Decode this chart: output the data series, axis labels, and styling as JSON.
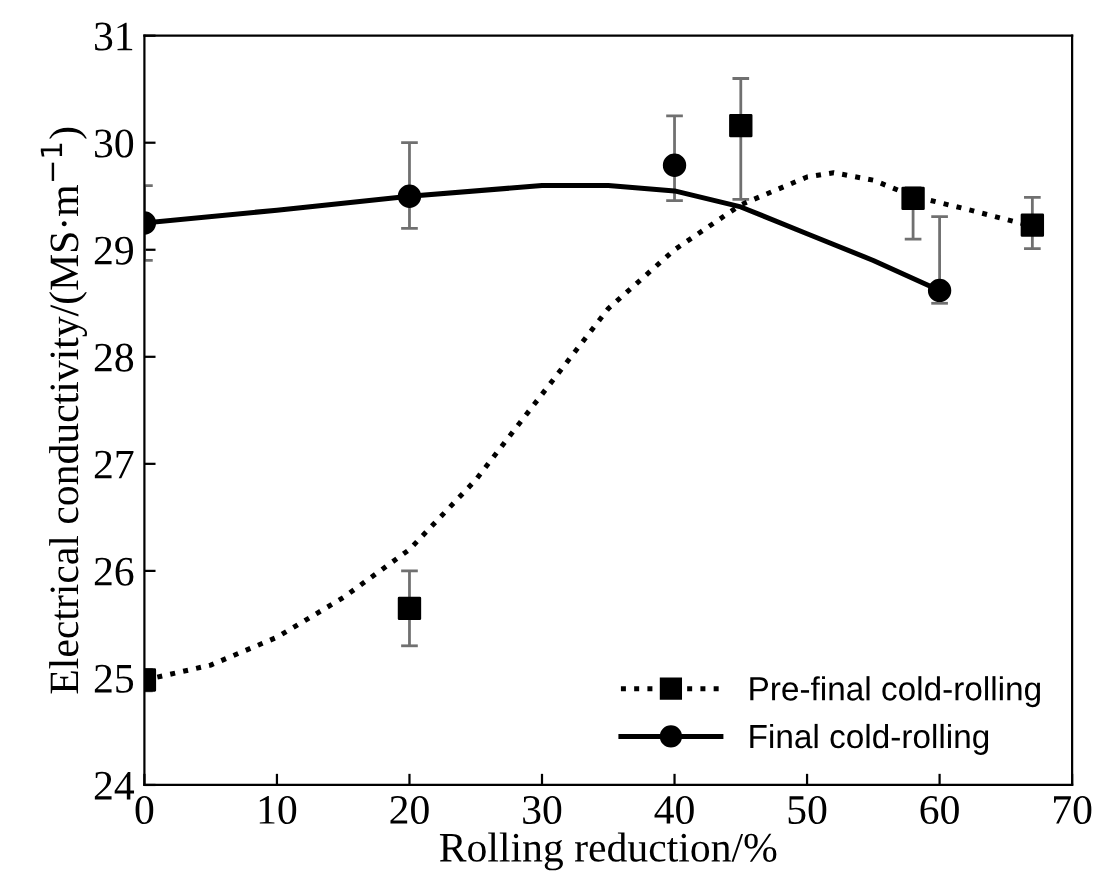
{
  "chart_data": {
    "type": "scatter",
    "xlabel": "Rolling reduction/%",
    "ylabel": "Electrical conductivity/(MS·m$^{−1}$)",
    "xlim": [
      0,
      70
    ],
    "ylim": [
      24,
      31
    ],
    "xticks": [
      0,
      10,
      20,
      30,
      40,
      50,
      60,
      70
    ],
    "yticks": [
      24,
      25,
      26,
      27,
      28,
      29,
      30,
      31
    ],
    "grid": false,
    "legend": "bottom right",
    "series": [
      {
        "name": "Pre-final cold-rolling",
        "color": "#000000",
        "marker": "square",
        "x": [
          0,
          20,
          45,
          58,
          67
        ],
        "values": [
          24.98,
          25.65,
          30.16,
          29.48,
          29.23
        ],
        "errors": [
          0.1,
          [
            25.3,
            26.0
          ],
          [
            29.47,
            30.6
          ],
          [
            29.1,
            29.58
          ],
          [
            29.01,
            29.49
          ]
        ]
      },
      {
        "type": "line",
        "color": "#000000",
        "line_style": "dotted",
        "x": [
          0,
          5,
          10,
          15,
          20,
          25,
          30,
          35,
          40,
          45,
          50,
          52,
          55,
          58,
          62,
          67
        ],
        "values": [
          24.98,
          25.12,
          25.38,
          25.75,
          26.2,
          26.85,
          27.65,
          28.45,
          29.0,
          29.42,
          29.68,
          29.72,
          29.65,
          29.5,
          29.38,
          29.22
        ]
      },
      {
        "name": "Final cold-rolling",
        "color": "#000000",
        "marker": "circle",
        "x": [
          0,
          20,
          40,
          60
        ],
        "values": [
          29.25,
          29.5,
          29.79,
          28.62
        ],
        "errors": [
          [
            28.9,
            29.6
          ],
          [
            29.2,
            30.0
          ],
          [
            29.46,
            30.25
          ],
          [
            28.5,
            29.31
          ]
        ]
      },
      {
        "type": "line",
        "color": "#000000",
        "line_style": "solid",
        "x": [
          0,
          10,
          20,
          30,
          35,
          40,
          45,
          50,
          55,
          60
        ],
        "values": [
          29.25,
          29.37,
          29.5,
          29.6,
          29.6,
          29.55,
          29.4,
          29.15,
          28.9,
          28.62
        ]
      }
    ]
  }
}
